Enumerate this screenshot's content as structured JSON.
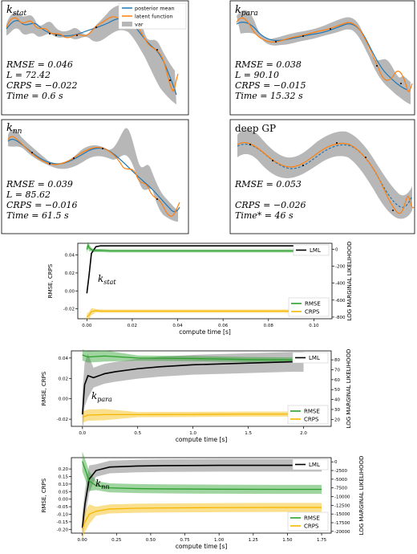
{
  "legend": {
    "posterior": "posterior mean",
    "latent": "latent function",
    "var": "var"
  },
  "colors": {
    "blue": "#1f77b4",
    "orange": "#ff7f0e",
    "gray": "#b3b3b3",
    "green": "#2ca02c",
    "yellow": "#f5b700",
    "black": "#000000"
  },
  "panels": [
    {
      "title_main": "k",
      "title_sub": "stat",
      "lines": [
        "RMSE = 0.046",
        "L = 72.42",
        "CRPS = −0.022",
        "Time = 0.6 s"
      ],
      "legend": true
    },
    {
      "title_main": "k",
      "title_sub": "para",
      "lines": [
        "RMSE = 0.038",
        "L = 90.10",
        "CRPS = −0.015",
        "Time = 15.32 s"
      ],
      "legend": false
    },
    {
      "title_main": "k",
      "title_sub": "nn",
      "lines": [
        "RMSE = 0.039",
        "L = 85.62",
        "CRPS = −0.016",
        "Time = 61.5 s"
      ],
      "legend": false
    },
    {
      "title_main": "deep GP",
      "title_sub": "",
      "lines": [
        "RMSE = 0.053",
        "",
        "CRPS = −0.026",
        "Time* = 46 s"
      ],
      "legend": false
    }
  ],
  "chart_data": [
    {
      "type": "line",
      "annotation": "k_stat",
      "xlabel": "compute time [s]",
      "ylabel": "RMSE, CRPS",
      "y2label": "LOG MARGINAL LIKELIHOOD",
      "xlim": [
        -0.004,
        0.108
      ],
      "ylim": [
        -0.031,
        0.053
      ],
      "y2lim": [
        -820,
        70
      ],
      "xticks": [
        0.0,
        0.02,
        0.04,
        0.06,
        0.08,
        0.1
      ],
      "xticklabels": [
        "0.00",
        "0.02",
        "0.04",
        "0.06",
        "0.08",
        "0.10"
      ],
      "yticks": [
        -0.02,
        0.0,
        0.02,
        0.04
      ],
      "yticklabels": [
        "-0.02",
        "0.00",
        "0.02",
        "0.04"
      ],
      "y2ticks": [
        0,
        -200,
        -400,
        -600,
        -800
      ],
      "y2ticklabels": [
        "0",
        "-200",
        "-400",
        "-600",
        "-800"
      ],
      "legend_top": [
        "LML"
      ],
      "legend_bottom": [
        "RMSE",
        "CRPS"
      ],
      "series": [
        {
          "name": "LML",
          "axis": "right",
          "color": "black",
          "x": [
            0.0,
            0.001,
            0.002,
            0.004,
            0.006,
            0.01,
            0.02,
            0.04,
            0.06,
            0.08,
            0.097
          ],
          "y": [
            -520,
            -300,
            -50,
            30,
            40,
            40,
            40,
            40,
            40,
            40,
            40
          ]
        },
        {
          "name": "RMSE",
          "axis": "left",
          "color": "green",
          "x": [
            0.0,
            0.0005,
            0.001,
            0.002,
            0.003,
            0.006,
            0.01,
            0.02,
            0.04,
            0.06,
            0.08,
            0.097
          ],
          "y": [
            0.046,
            0.051,
            0.048,
            0.046,
            0.045,
            0.045,
            0.0445,
            0.0445,
            0.0445,
            0.0445,
            0.0445,
            0.0445
          ]
        },
        {
          "name": "CRPS",
          "axis": "left",
          "color": "yellow",
          "x": [
            0.0,
            0.001,
            0.002,
            0.004,
            0.006,
            0.01,
            0.03,
            0.06,
            0.08,
            0.097
          ],
          "y": [
            -0.029,
            -0.027,
            -0.023,
            -0.022,
            -0.0225,
            -0.0225,
            -0.0225,
            -0.0225,
            -0.0225,
            -0.0225
          ]
        }
      ]
    },
    {
      "type": "line",
      "annotation": "k_para",
      "xlabel": "compute time [s]",
      "ylabel": "RMSE, CRPS",
      "y2label": "LOG MARGINAL LIKELIHOOD",
      "xlim": [
        -0.1,
        2.25
      ],
      "ylim": [
        -0.027,
        0.047
      ],
      "y2lim": [
        13,
        89
      ],
      "xticks": [
        0.0,
        0.5,
        1.0,
        1.5,
        2.0
      ],
      "xticklabels": [
        "0.0",
        "0.5",
        "1.0",
        "1.5",
        "2.0"
      ],
      "yticks": [
        -0.02,
        0.0,
        0.02,
        0.04
      ],
      "yticklabels": [
        "-0.02",
        "0.00",
        "0.02",
        "0.04"
      ],
      "y2ticks": [
        20,
        30,
        40,
        50,
        60,
        70,
        80
      ],
      "y2ticklabels": [
        "20",
        "30",
        "40",
        "50",
        "60",
        "70",
        "80"
      ],
      "legend_top": [
        "LML"
      ],
      "legend_bottom": [
        "RMSE",
        "CRPS"
      ],
      "series": [
        {
          "name": "LML",
          "axis": "right",
          "color": "black",
          "x": [
            0.0,
            0.02,
            0.05,
            0.1,
            0.2,
            0.3,
            0.5,
            0.7,
            1.0,
            1.3,
            1.6,
            1.9,
            2.0
          ],
          "y": [
            25,
            55,
            64,
            62,
            66,
            68,
            71,
            73,
            75,
            76,
            77,
            78,
            78
          ]
        },
        {
          "name": "RMSE",
          "axis": "left",
          "color": "green",
          "x": [
            0.0,
            0.05,
            0.2,
            0.5,
            1.0,
            1.5,
            2.0
          ],
          "y": [
            0.043,
            0.041,
            0.042,
            0.04,
            0.0395,
            0.0385,
            0.038
          ]
        },
        {
          "name": "CRPS",
          "axis": "left",
          "color": "yellow",
          "x": [
            0.0,
            0.05,
            0.2,
            0.5,
            1.0,
            1.5,
            2.0
          ],
          "y": [
            -0.018,
            -0.016,
            -0.0155,
            -0.0155,
            -0.0153,
            -0.015,
            -0.015
          ]
        }
      ]
    },
    {
      "type": "line",
      "annotation": "k_nn",
      "xlabel": "compute time [s]",
      "ylabel": "RMSE, CRPS",
      "y2label": "LOG MARGINAL LIKELIHOOD",
      "xlim": [
        -0.08,
        1.82
      ],
      "ylim": [
        -0.225,
        0.275
      ],
      "y2lim": [
        -20500,
        1200
      ],
      "xticks": [
        0.0,
        0.25,
        0.5,
        0.75,
        1.0,
        1.25,
        1.5,
        1.75
      ],
      "xticklabels": [
        "0.00",
        "0.25",
        "0.50",
        "0.75",
        "1.00",
        "1.25",
        "1.50",
        "1.75"
      ],
      "yticks": [
        -0.2,
        -0.15,
        -0.1,
        -0.05,
        0.0,
        0.05,
        0.1,
        0.15,
        0.2
      ],
      "yticklabels": [
        "-0.20",
        "-0.15",
        "-0.10",
        "-0.05",
        "0.00",
        "0.05",
        "0.10",
        "0.15",
        "0.20"
      ],
      "y2ticks": [
        0,
        -2500,
        -5000,
        -7500,
        -10000,
        -12500,
        -15000,
        -17500,
        -20000
      ],
      "y2ticklabels": [
        "0",
        "-2500",
        "-5000",
        "-7500",
        "-10000",
        "-12500",
        "-15000",
        "-17500",
        "-20000"
      ],
      "legend_top": [
        "LML"
      ],
      "legend_bottom": [
        "RMSE",
        "CRPS"
      ],
      "series": [
        {
          "name": "LML",
          "axis": "right",
          "color": "black",
          "x": [
            0.0,
            0.02,
            0.05,
            0.1,
            0.2,
            0.4,
            0.6,
            1.0,
            1.4,
            1.75
          ],
          "y": [
            -19000,
            -12000,
            -5000,
            -2500,
            -1500,
            -1200,
            -1100,
            -1000,
            -1000,
            -1000
          ]
        },
        {
          "name": "RMSE",
          "axis": "left",
          "color": "green",
          "x": [
            0.0,
            0.02,
            0.05,
            0.1,
            0.2,
            0.4,
            0.6,
            1.0,
            1.4,
            1.75
          ],
          "y": [
            0.25,
            0.2,
            0.12,
            0.09,
            0.075,
            0.07,
            0.068,
            0.066,
            0.065,
            0.065
          ]
        },
        {
          "name": "CRPS",
          "axis": "left",
          "color": "yellow",
          "x": [
            0.0,
            0.02,
            0.05,
            0.1,
            0.2,
            0.4,
            0.6,
            1.0,
            1.4,
            1.75
          ],
          "y": [
            -0.2,
            -0.15,
            -0.1,
            -0.08,
            -0.065,
            -0.06,
            -0.058,
            -0.056,
            -0.055,
            -0.055
          ]
        }
      ]
    }
  ]
}
